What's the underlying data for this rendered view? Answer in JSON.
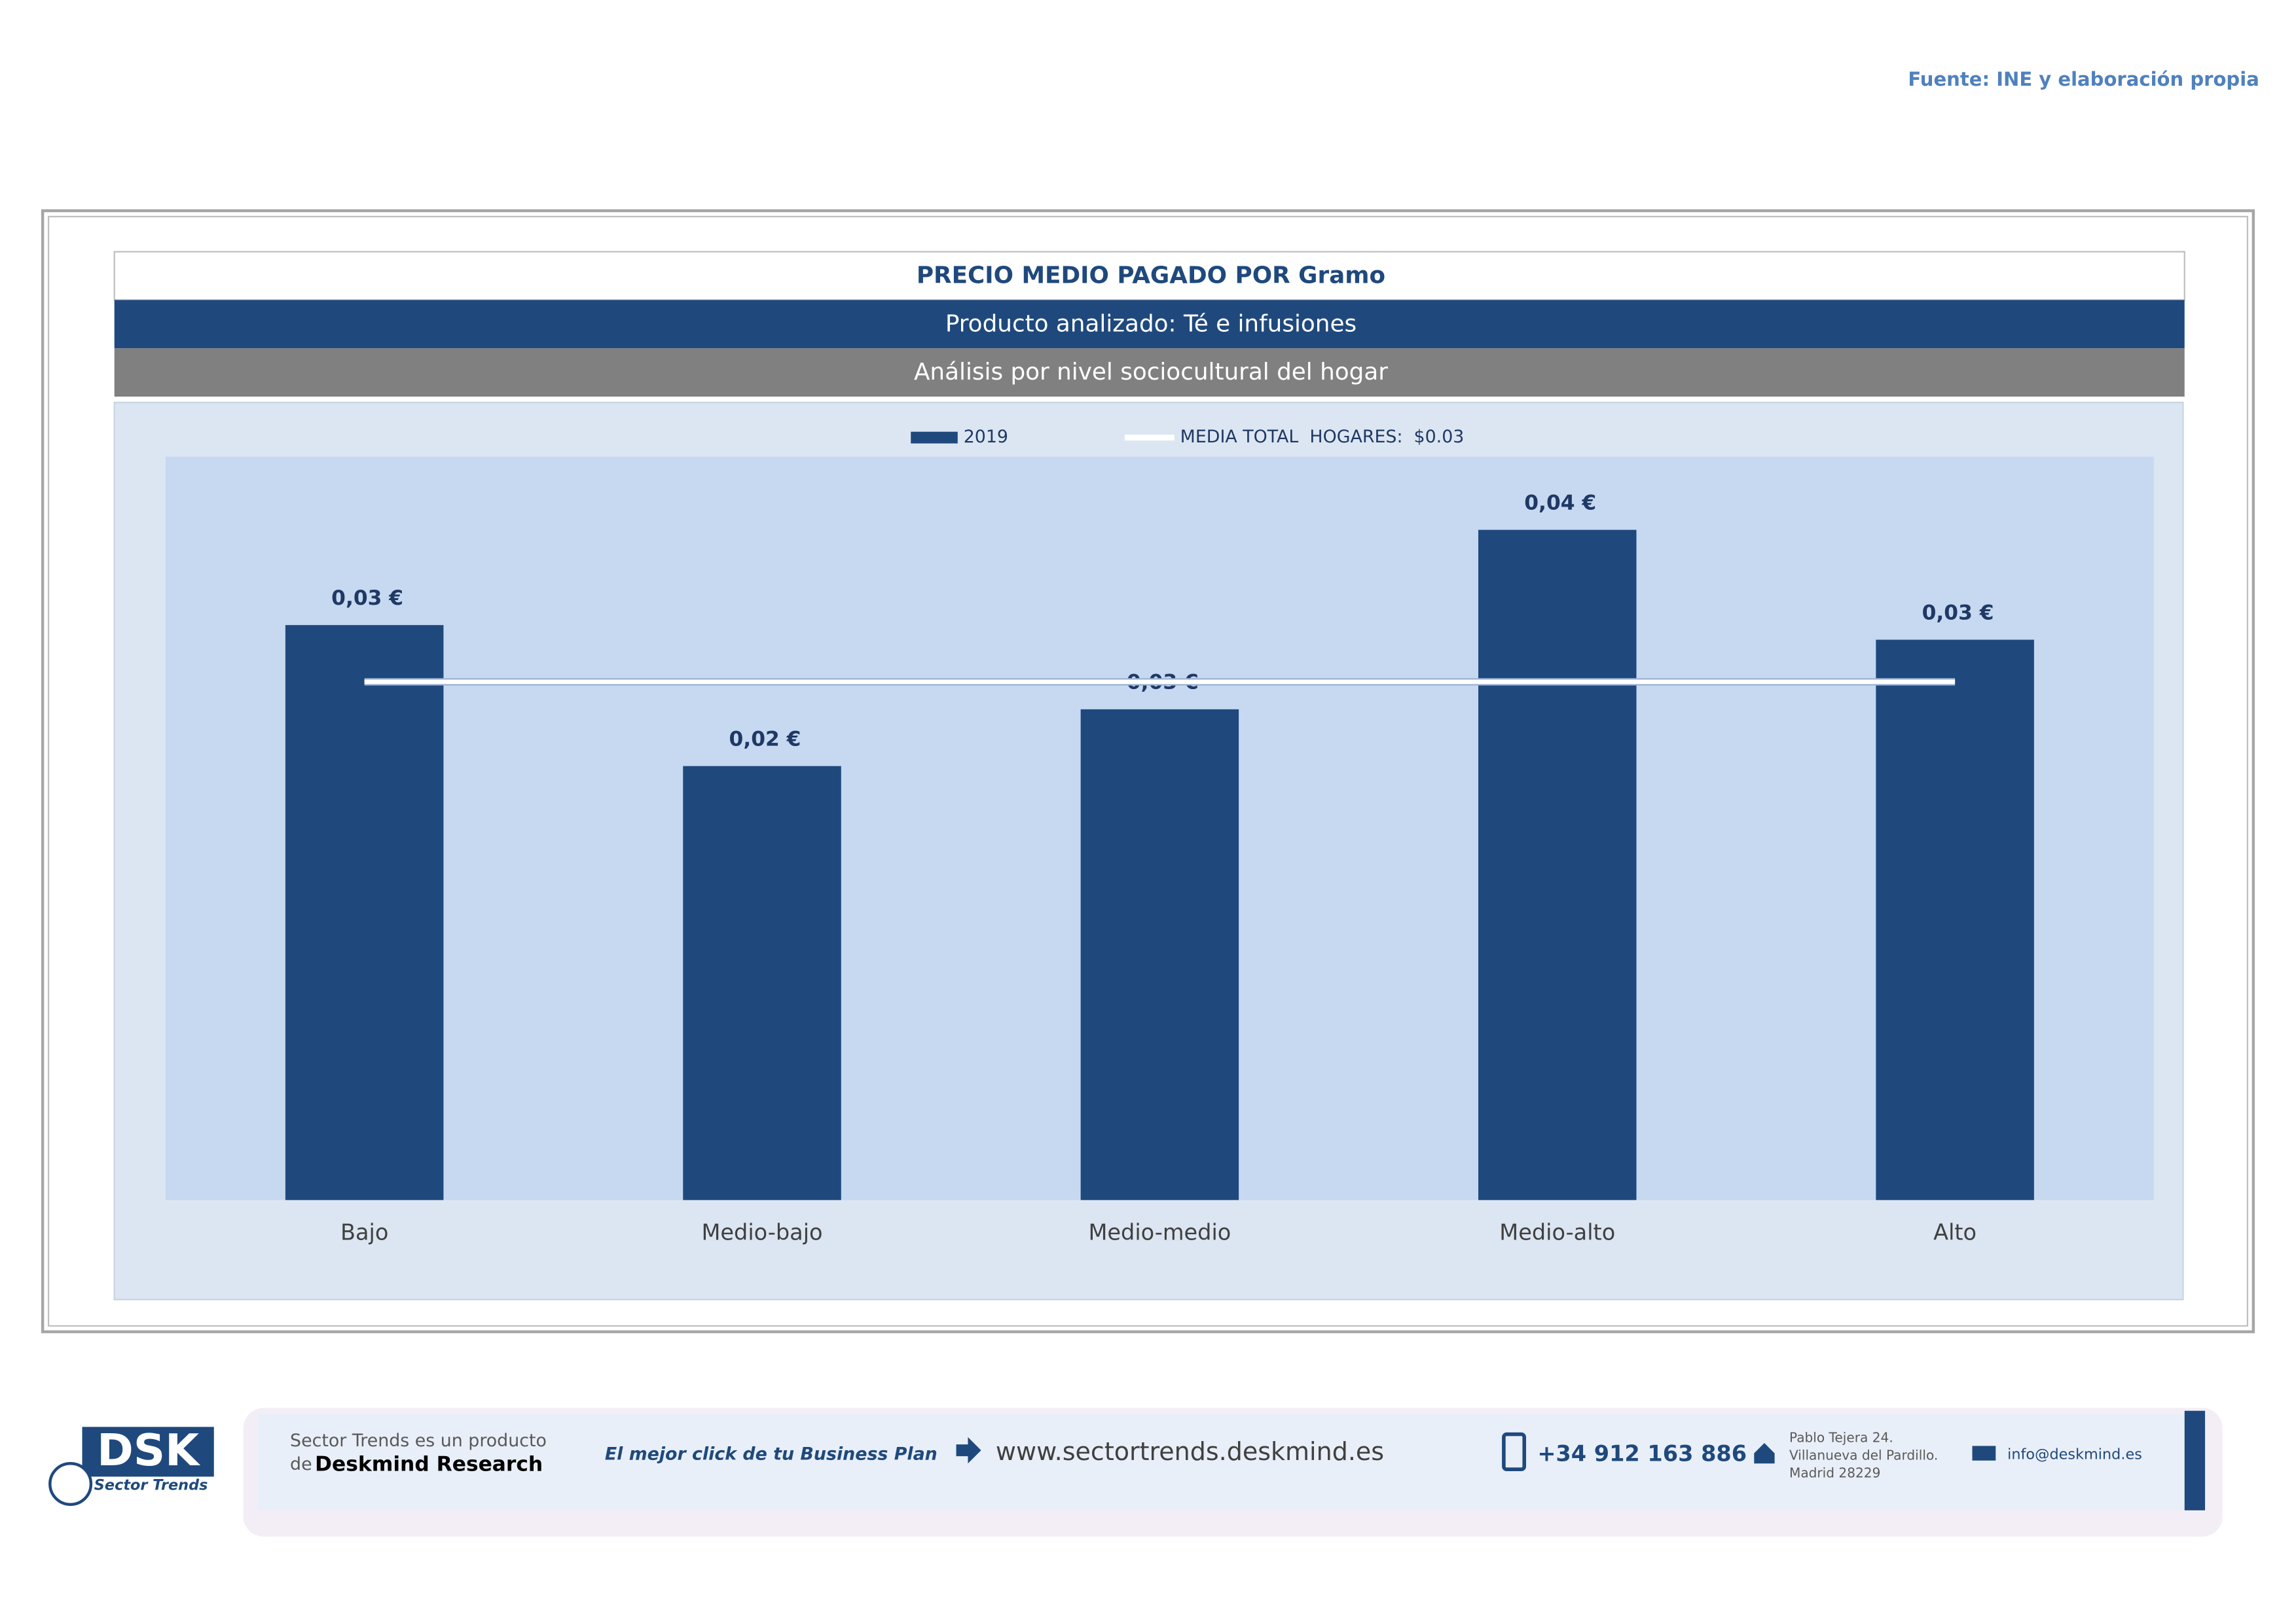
{
  "source": "Fuente: INE y elaboración propia",
  "chart_data": {
    "type": "bar",
    "title": "PRECIO MEDIO PAGADO POR Gramo",
    "subtitle": "Producto analizado: Té e infusiones",
    "analysis": "Análisis por nivel sociocultural del hogar",
    "categories": [
      "Bajo",
      "Medio-bajo",
      "Medio-medio",
      "Medio-alto",
      "Alto"
    ],
    "series": [
      {
        "name": "2019",
        "type": "bar",
        "color": "#1f497d",
        "values": [
          0.0314,
          0.0237,
          0.0268,
          0.0366,
          0.0306
        ],
        "value_labels": [
          "0,03 €",
          "0,02 €",
          "0,03 €",
          "0,04 €",
          "0,03 €"
        ]
      },
      {
        "name": "MEDIA TOTAL  HOGARES:  $0.03",
        "type": "line",
        "color": "#ffffff",
        "values": [
          0.0283,
          0.0283,
          0.0283,
          0.0283,
          0.0283
        ]
      }
    ],
    "ylim": [
      0,
      0.0406
    ],
    "legend": "top",
    "grid": false
  },
  "footer": {
    "product": "Sector Trends es un producto",
    "de": "de",
    "company": "Deskmind Research",
    "slogan": "El mejor click de tu Business Plan",
    "web": "www.sectortrends.deskmind.es",
    "phone": "+34 912 163 886",
    "address": [
      "Pablo Tejera 24.",
      "Villanueva del Pardillo.",
      "Madrid 28229"
    ],
    "email": "info@deskmind.es",
    "logo": "DSK",
    "logo_sub": "Sector Trends"
  }
}
